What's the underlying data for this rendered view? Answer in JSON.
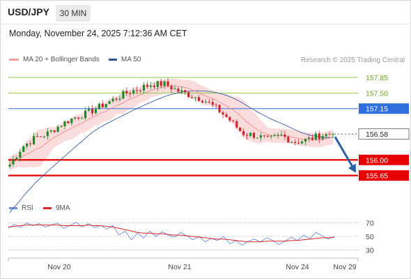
{
  "header": {
    "pair": "USD/JPY",
    "timeframe": "30 MIN",
    "datetime": "Monday, November 24, 2025 7:12:36 AM CET",
    "credit": "Research © 2025 Trading Central"
  },
  "colors": {
    "resistance_green": "#8dc63f",
    "pivot_blue": "#2f6fdd",
    "support_red": "#e60000",
    "bull_candle": "#1f8a2a",
    "bear_candle": "#c8262c",
    "bollinger_fill": "#fbdcdc",
    "ma20": "#f08a8a",
    "ma50": "#3a5fa8",
    "rsi": "#6f8fd8",
    "rsi_ma": "#d9262c",
    "arrow": "#2b5fa6"
  },
  "chart_data": [
    {
      "type": "candlestick",
      "legend": [
        {
          "name": "MA 20 + Bollinger Bands",
          "color": "#f08a8a"
        },
        {
          "name": "MA 50",
          "color": "#3a5fa8"
        }
      ],
      "ylim": [
        155.05,
        158.1
      ],
      "x_ticks": [
        "Nov 20",
        "Nov 21",
        "Nov 24",
        "Nov 29"
      ],
      "levels": [
        {
          "label": "157.85",
          "value": 157.85,
          "kind": "resistance"
        },
        {
          "label": "157.50",
          "value": 157.5,
          "kind": "resistance"
        },
        {
          "label": "157.15",
          "value": 157.15,
          "kind": "pivot"
        },
        {
          "label": "156.58",
          "value": 156.58,
          "kind": "last_price"
        },
        {
          "label": "156.00",
          "value": 156.0,
          "kind": "support"
        },
        {
          "label": "155.65",
          "value": 155.65,
          "kind": "support"
        }
      ],
      "price_path": [
        155.9,
        156.3,
        156.5,
        156.6,
        156.8,
        156.95,
        157.05,
        157.2,
        157.35,
        157.5,
        157.6,
        157.7,
        157.7,
        157.55,
        157.45,
        157.35,
        157.15,
        156.9,
        156.6,
        156.55,
        156.45,
        156.55,
        156.4,
        156.45,
        156.55,
        156.58
      ],
      "scenario_arrow": {
        "from": 156.58,
        "to": 155.65
      }
    },
    {
      "type": "line",
      "legend": [
        {
          "name": "RSI",
          "color": "#6f8fd8"
        },
        {
          "name": "9MA",
          "color": "#d9262c"
        }
      ],
      "ylim": [
        20,
        80
      ],
      "y_ticks": [
        "70",
        "50",
        "30"
      ],
      "series": [
        {
          "name": "RSI",
          "values": [
            62,
            68,
            63,
            70,
            66,
            69,
            64,
            67,
            70,
            62,
            66,
            71,
            64,
            69,
            63,
            66,
            61,
            66,
            52,
            58,
            45,
            55,
            48,
            58,
            50,
            57,
            52,
            49,
            56,
            51,
            45,
            50,
            42,
            47,
            44,
            50,
            39,
            44,
            37,
            43,
            46,
            42,
            48,
            44,
            38,
            43,
            49,
            44,
            52,
            47,
            56,
            51,
            46,
            50
          ]
        },
        {
          "name": "9MA",
          "values": [
            64,
            65,
            66,
            67,
            67,
            67,
            67,
            67,
            67,
            66,
            66,
            66,
            66,
            67,
            66,
            66,
            65,
            64,
            62,
            60,
            58,
            56,
            55,
            55,
            54,
            54,
            53,
            52,
            52,
            51,
            50,
            49,
            48,
            47,
            46,
            46,
            45,
            44,
            43,
            42,
            42,
            42,
            43,
            43,
            43,
            43,
            44,
            44,
            45,
            46,
            47,
            48,
            48,
            49
          ]
        }
      ]
    }
  ]
}
